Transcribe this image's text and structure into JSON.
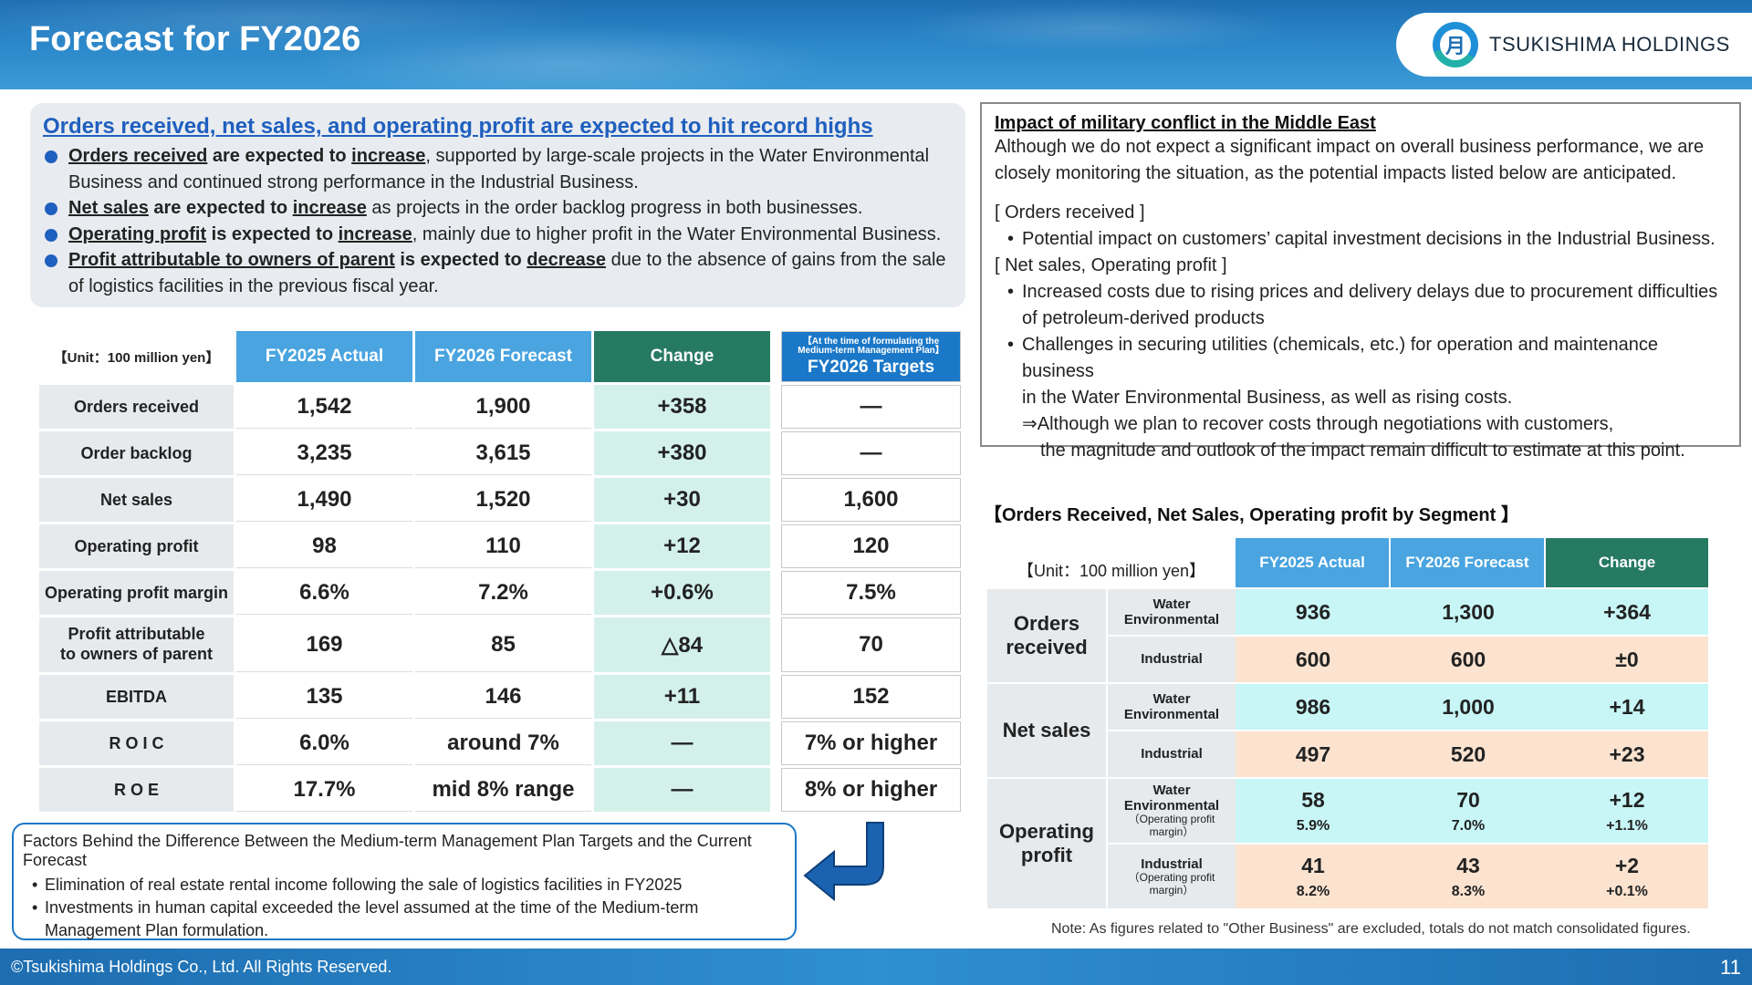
{
  "header": {
    "title": "Forecast for FY2026",
    "logo_text": "TSUKISHIMA HOLDINGS",
    "logo_mark": "月"
  },
  "summary": {
    "heading": "Orders received, net sales, and operating profit are expected to hit record highs",
    "bullets": [
      {
        "a": "Orders received",
        "b": " are expected to ",
        "c": "increase",
        "d": ", supported by large-scale projects in the Water Environmental Business and continued strong performance in the Industrial Business."
      },
      {
        "a": "Net sales",
        "b": " are expected to ",
        "c": "increase",
        "d": " as projects in the order backlog progress in both businesses."
      },
      {
        "a": "Operating profit",
        "b": " is expected to ",
        "c": "increase",
        "d": ", mainly due to higher profit in the Water Environmental Business."
      },
      {
        "a": "Profit attributable to owners of parent",
        "b": " is expected to ",
        "c": "decrease",
        "d": " due to the absence of gains from the sale of logistics facilities in the previous fiscal year."
      }
    ]
  },
  "main_table": {
    "unit": "【Unit：100 million yen】",
    "headers": [
      "FY2025 Actual",
      "FY2026 Forecast",
      "Change"
    ],
    "target_header_small": "【At the time of formulating the Medium-term Management Plan】",
    "target_header": "FY2026 Targets",
    "rows": [
      {
        "label": "Orders received",
        "actual": "1,542",
        "forecast": "1,900",
        "change": "+358",
        "target": "―"
      },
      {
        "label": "Order backlog",
        "actual": "3,235",
        "forecast": "3,615",
        "change": "+380",
        "target": "―"
      },
      {
        "label": "Net sales",
        "actual": "1,490",
        "forecast": "1,520",
        "change": "+30",
        "target": "1,600"
      },
      {
        "label": "Operating profit",
        "actual": "98",
        "forecast": "110",
        "change": "+12",
        "target": "120"
      },
      {
        "label": "Operating profit margin",
        "actual": "6.6%",
        "forecast": "7.2%",
        "change": "+0.6%",
        "target": "7.5%"
      },
      {
        "label": "Profit attributable\nto owners of parent",
        "actual": "169",
        "forecast": "85",
        "change": "△84",
        "target": "70"
      },
      {
        "label": "EBITDA",
        "actual": "135",
        "forecast": "146",
        "change": "+11",
        "target": "152"
      },
      {
        "label": "R O I C",
        "actual": "6.0%",
        "forecast": "around 7%",
        "change": "―",
        "target": "7% or higher"
      },
      {
        "label": "R O E",
        "actual": "17.7%",
        "forecast": "mid 8% range",
        "change": "―",
        "target": "8% or higher"
      }
    ]
  },
  "factors": {
    "title": "Factors Behind the Difference Between the Medium-term Management Plan Targets and the Current Forecast",
    "items": [
      "Elimination of real estate rental income following the sale of logistics facilities in FY2025",
      "Investments in human capital exceeded the level assumed at the time of the Medium-term Management Plan formulation."
    ]
  },
  "impact": {
    "heading": "Impact of military conflict in the Middle East",
    "intro_1": "Although we do not expect a significant impact on overall business performance, we are",
    "intro_2": "closely monitoring the situation, as the potential impacts listed below are anticipated.",
    "orders_label": "[ Orders received ]",
    "orders_item": "Potential impact on customers’ capital investment decisions in the Industrial Business.",
    "sales_label": "[ Net sales, Operating profit ]",
    "sales_item1_a": "Increased costs due to rising prices and delivery delays due to procurement difficulties",
    "sales_item1_b": "of petroleum-derived products",
    "sales_item2_a": "Challenges in securing utilities (chemicals, etc.) for operation and maintenance business",
    "sales_item2_b": "in the Water Environmental Business, as well as rising costs.",
    "note_a": "⇒Although we plan to recover costs through negotiations with customers,",
    "note_b": "the magnitude and outlook of the impact remain difficult to estimate at this point."
  },
  "segment": {
    "title": "【Orders Received, Net Sales, Operating profit by Segment 】",
    "unit": "【Unit：100 million yen】",
    "headers": [
      "FY2025 Actual",
      "FY2026 Forecast",
      "Change"
    ],
    "water_label": "Water Environmental",
    "industrial_label": "Industrial",
    "opm_label": "（Operating profit margin）",
    "groups": {
      "orders": "Orders received",
      "sales": "Net sales",
      "profit": "Operating profit"
    },
    "orders": {
      "water": [
        "936",
        "1,300",
        "+364"
      ],
      "industrial": [
        "600",
        "600",
        "±0"
      ]
    },
    "sales": {
      "water": [
        "986",
        "1,000",
        "+14"
      ],
      "industrial": [
        "497",
        "520",
        "+23"
      ]
    },
    "profit": {
      "water": [
        "58",
        "70",
        "+12"
      ],
      "water_pct": [
        "5.9%",
        "7.0%",
        "+1.1%"
      ],
      "industrial": [
        "41",
        "43",
        "+2"
      ],
      "industrial_pct": [
        "8.2%",
        "8.3%",
        "+0.1%"
      ]
    },
    "note": "Note: As figures related to \"Other Business\" are excluded, totals do not match consolidated figures."
  },
  "footer": {
    "copyright": "©Tsukishima Holdings Co., Ltd. All Rights Reserved.",
    "page": "11"
  },
  "colors": {
    "accent_blue": "#1f5fbf",
    "header_blue": "#49a4e0",
    "change_green": "#277a62",
    "target_blue": "#1b78c8"
  }
}
